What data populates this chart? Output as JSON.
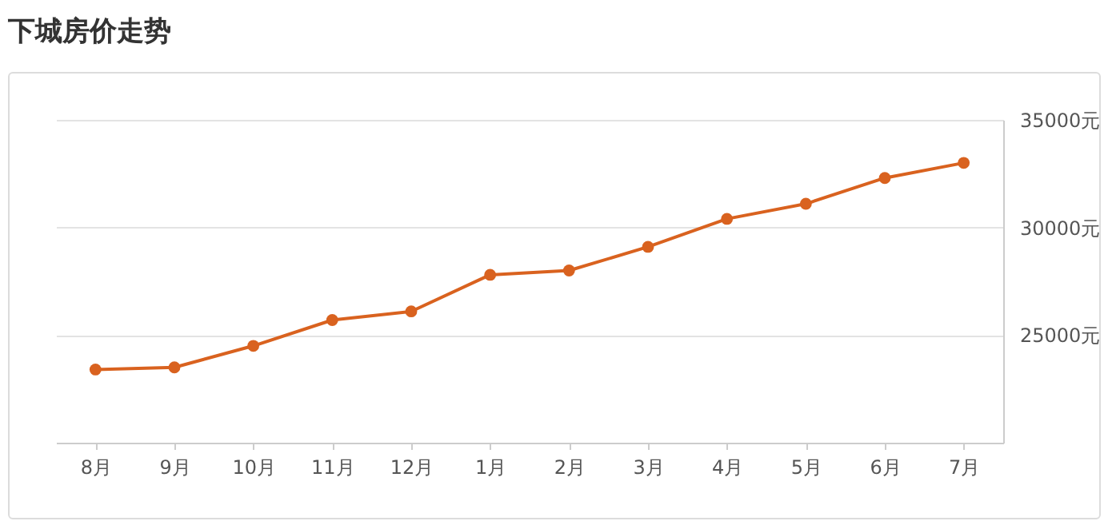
{
  "chart_data": {
    "type": "line",
    "title": "下城房价走势",
    "categories": [
      "8月",
      "9月",
      "10月",
      "11月",
      "12月",
      "1月",
      "2月",
      "3月",
      "4月",
      "5月",
      "6月",
      "7月"
    ],
    "values": [
      23400,
      23500,
      24500,
      25700,
      26100,
      27800,
      28000,
      29100,
      30400,
      31100,
      32300,
      33000
    ],
    "color": "#d9621f",
    "ylim": [
      20000,
      35000
    ],
    "yticks": [
      {
        "value": 25000,
        "label": "25000元"
      },
      {
        "value": 30000,
        "label": "30000元"
      },
      {
        "value": 35000,
        "label": "35000元"
      }
    ],
    "grid": "y",
    "marker": "circle"
  }
}
